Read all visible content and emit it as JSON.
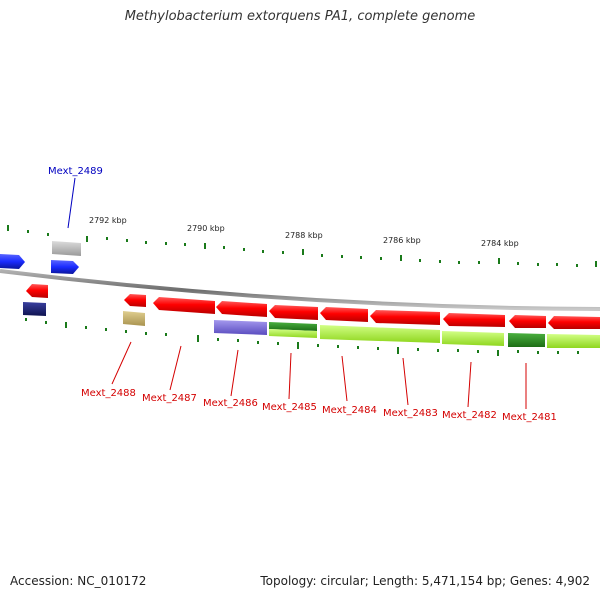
{
  "title": "Methylobacterium extorquens PA1, complete genome",
  "footer": {
    "accession": "Accession: NC_010172",
    "summary": "Topology: circular; Length: 5,471,154 bp; Genes: 4,902"
  },
  "colors": {
    "forward_blue": "#1a2bff",
    "navy": "#141a6e",
    "grey_gene": "#b8b8b8",
    "red_gene": "#ff0000",
    "tan_gene": "#c8b46e",
    "purple_gene": "#7d6fd6",
    "dark_green_gene": "#2b8a22",
    "lime_gene": "#aef23a",
    "tick_green": "#1a7a1a",
    "backbone": "#7a7a7a",
    "label_red": "#d40000",
    "label_blue": "#0000c0"
  },
  "scale_labels": [
    "2792 kbp",
    "2790 kbp",
    "2788 kbp",
    "2786 kbp",
    "2784 kbp"
  ],
  "gene_labels": [
    {
      "id": "Mext_2489",
      "color": "blue"
    },
    {
      "id": "Mext_2488",
      "color": "red"
    },
    {
      "id": "Mext_2487",
      "color": "red"
    },
    {
      "id": "Mext_2486",
      "color": "red"
    },
    {
      "id": "Mext_2485",
      "color": "red"
    },
    {
      "id": "Mext_2484",
      "color": "red"
    },
    {
      "id": "Mext_2483",
      "color": "red"
    },
    {
      "id": "Mext_2482",
      "color": "red"
    },
    {
      "id": "Mext_2481",
      "color": "red"
    }
  ]
}
